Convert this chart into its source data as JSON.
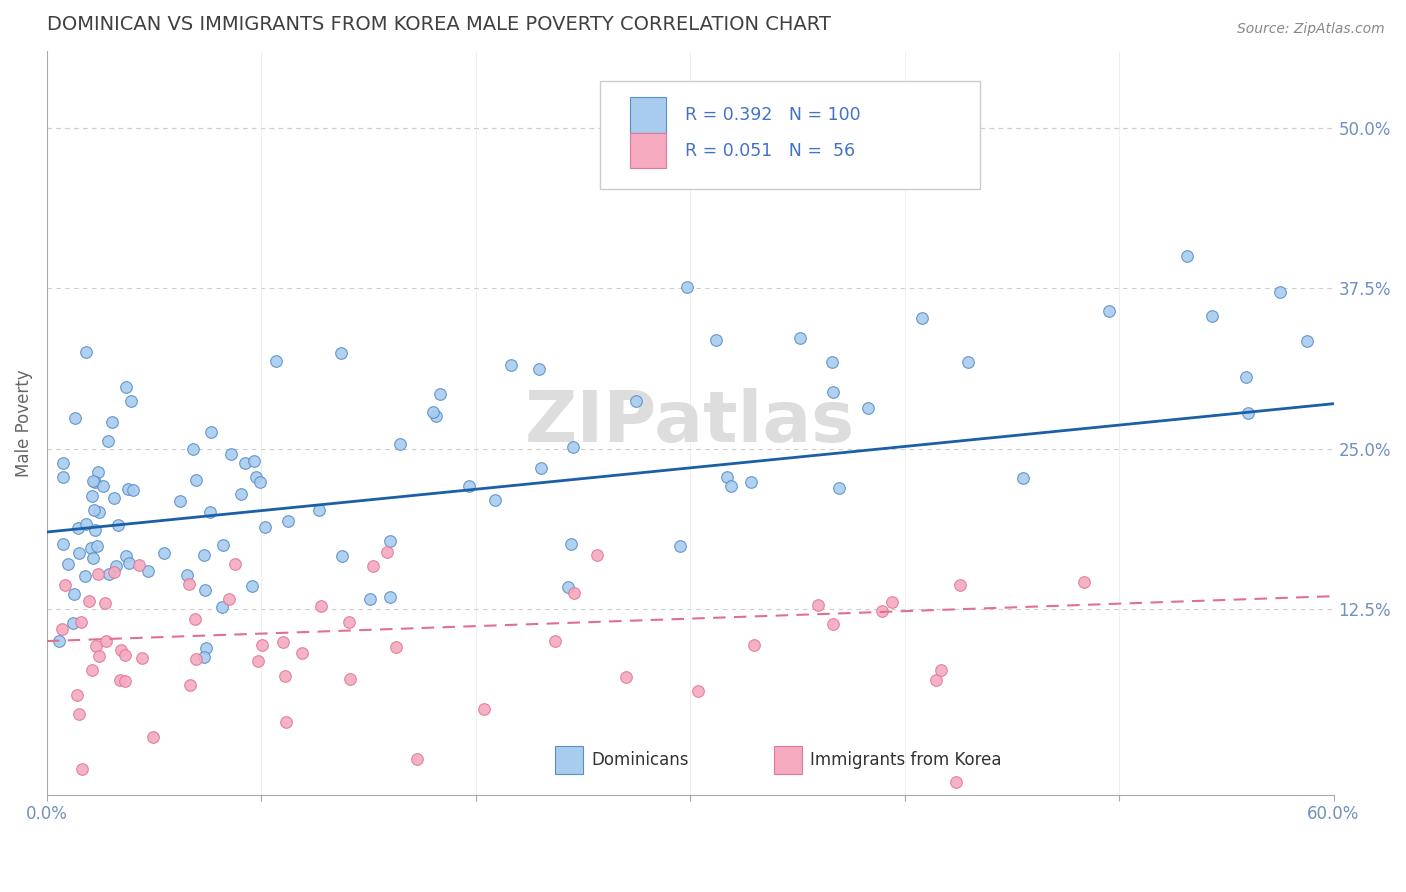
{
  "title": "DOMINICAN VS IMMIGRANTS FROM KOREA MALE POVERTY CORRELATION CHART",
  "source_text": "Source: ZipAtlas.com",
  "ylabel": "Male Poverty",
  "xlim": [
    0.0,
    0.6
  ],
  "ylim": [
    -0.02,
    0.56
  ],
  "plot_ylim": [
    -0.02,
    0.56
  ],
  "yticks_right": [
    0.125,
    0.25,
    0.375,
    0.5
  ],
  "yticklabels_right": [
    "12.5%",
    "25.0%",
    "37.5%",
    "50.0%"
  ],
  "blue_scatter_color": "#A8CCEE",
  "blue_scatter_edge": "#5A8EC8",
  "pink_scatter_color": "#F5AABF",
  "pink_scatter_edge": "#E07898",
  "blue_line_color": "#1A5FA8",
  "pink_line_color": "#E07090",
  "legend_text_color": "#4472C4",
  "title_color": "#404040",
  "axis_label_color": "#666666",
  "tick_color": "#7090C0",
  "grid_color": "#CCCCCC",
  "grid_dash": [
    4,
    4
  ],
  "watermark_color": "#DDDDDD",
  "source_color": "#888888"
}
